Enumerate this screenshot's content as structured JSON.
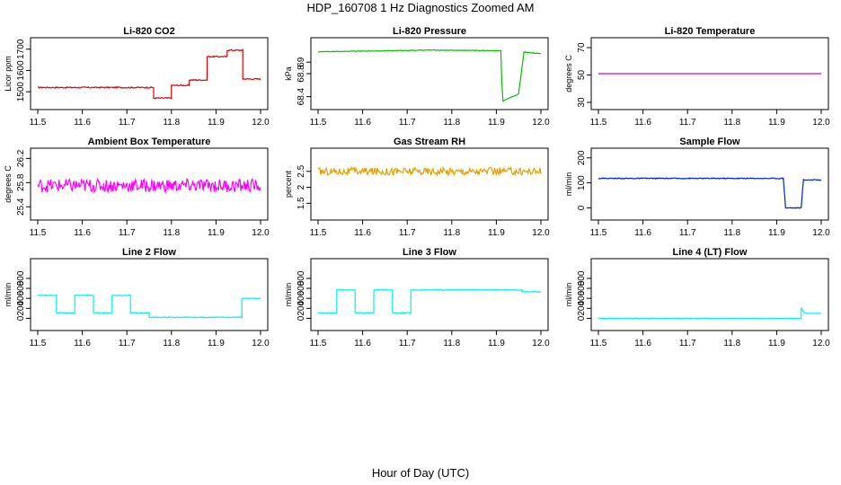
{
  "page_title": "HDP_160708  1 Hz Diagnostics Zoomed AM",
  "x_axis_label": "Hour of Day (UTC)",
  "chart_data": [
    {
      "type": "line",
      "title": "Li-820 CO2",
      "ylabel": "Licor ppm",
      "color": "#e00000",
      "xlim": [
        11.5,
        12.0
      ],
      "ylim": [
        1450,
        1720
      ],
      "xticks": [
        11.5,
        11.6,
        11.7,
        11.8,
        11.9,
        12.0
      ],
      "yticks": [
        1500,
        1600,
        1700
      ],
      "noise": 3,
      "series": [
        {
          "x": [
            11.5,
            11.76,
            11.76,
            11.8,
            11.8,
            11.84,
            11.84,
            11.88,
            11.88,
            11.925,
            11.925,
            11.96,
            11.96,
            12.0
          ],
          "y": [
            1520,
            1520,
            1470,
            1470,
            1530,
            1530,
            1555,
            1555,
            1665,
            1665,
            1695,
            1695,
            1560,
            1560
          ]
        }
      ]
    },
    {
      "type": "line",
      "title": "Li-820 Pressure",
      "ylabel": "kPa",
      "color": "#00c000",
      "xlim": [
        11.5,
        12.0
      ],
      "ylim": [
        68.3,
        69.3
      ],
      "xticks": [
        11.5,
        11.6,
        11.7,
        11.8,
        11.9,
        12.0
      ],
      "yticks": [
        68.4,
        68.8,
        69.0
      ],
      "noise": 0.006,
      "series": [
        {
          "x": [
            11.5,
            11.75,
            11.91,
            11.912,
            11.915,
            11.95,
            11.962,
            11.97,
            12.0
          ],
          "y": [
            69.18,
            69.21,
            69.2,
            68.68,
            68.32,
            68.45,
            69.18,
            69.17,
            69.15
          ]
        }
      ]
    },
    {
      "type": "line",
      "title": "Li-820 Temperature",
      "ylabel": "degrees C",
      "color": "#d000d0",
      "xlim": [
        11.5,
        12.0
      ],
      "ylim": [
        30,
        72
      ],
      "xticks": [
        11.5,
        11.6,
        11.7,
        11.8,
        11.9,
        12.0
      ],
      "yticks": [
        30,
        50,
        70
      ],
      "noise": 0,
      "series": [
        {
          "x": [
            11.5,
            12.0
          ],
          "y": [
            51,
            51
          ]
        }
      ]
    },
    {
      "type": "line",
      "title": "Ambient Box Temperature",
      "ylabel": "degrees C",
      "color": "#ff00ff",
      "xlim": [
        11.5,
        12.0
      ],
      "ylim": [
        25.3,
        26.25
      ],
      "xticks": [
        11.5,
        11.6,
        11.7,
        11.8,
        11.9,
        12.0
      ],
      "yticks": [
        25.4,
        25.8,
        26.2
      ],
      "noise": 0.11,
      "series": [
        {
          "x": [
            11.5,
            12.0
          ],
          "y": [
            25.75,
            25.75
          ]
        }
      ]
    },
    {
      "type": "line",
      "title": "Gas Stream RH",
      "ylabel": "percent",
      "color": "#e0a000",
      "xlim": [
        11.5,
        12.0
      ],
      "ylim": [
        1.2,
        3.0
      ],
      "xticks": [
        11.5,
        11.6,
        11.7,
        11.8,
        11.9,
        12.0
      ],
      "yticks": [
        1.5,
        2.0,
        2.5
      ],
      "noise": 0.12,
      "series": [
        {
          "x": [
            11.5,
            12.0
          ],
          "y": [
            2.5,
            2.5
          ]
        }
      ]
    },
    {
      "type": "line",
      "title": "Sample Flow",
      "ylabel": "ml/min",
      "color": "#0020d0",
      "xlim": [
        11.5,
        12.0
      ],
      "ylim": [
        -20,
        210
      ],
      "xticks": [
        11.5,
        11.6,
        11.7,
        11.8,
        11.9,
        12.0
      ],
      "yticks": [
        0,
        100,
        200
      ],
      "noise": 2,
      "series": [
        {
          "x": [
            11.5,
            11.915,
            11.92,
            11.955,
            11.96,
            12.0
          ],
          "y": [
            118,
            118,
            0,
            0,
            112,
            112
          ]
        }
      ]
    },
    {
      "type": "line",
      "title": "Line 2 Flow",
      "ylabel": "ml/min",
      "color": "#00f0f0",
      "xlim": [
        11.5,
        12.0
      ],
      "ylim": [
        -100,
        1050
      ],
      "xticks": [
        11.5,
        11.6,
        11.7,
        11.8,
        11.9,
        12.0
      ],
      "yticks": [
        0,
        200,
        400,
        600,
        800
      ],
      "noise": 8,
      "series": [
        {
          "x": [
            11.5,
            11.542,
            11.542,
            11.583,
            11.583,
            11.625,
            11.625,
            11.667,
            11.667,
            11.708,
            11.708,
            11.75,
            11.75,
            11.958,
            11.958,
            12.0
          ],
          "y": [
            460,
            460,
            110,
            110,
            460,
            460,
            110,
            110,
            460,
            460,
            110,
            110,
            20,
            20,
            400,
            400
          ]
        }
      ]
    },
    {
      "type": "line",
      "title": "Line 3 Flow",
      "ylabel": "ml/min",
      "color": "#00f0f0",
      "xlim": [
        11.5,
        12.0
      ],
      "ylim": [
        -100,
        1050
      ],
      "xticks": [
        11.5,
        11.6,
        11.7,
        11.8,
        11.9,
        12.0
      ],
      "yticks": [
        0,
        200,
        400,
        600,
        800
      ],
      "noise": 8,
      "series": [
        {
          "x": [
            11.5,
            11.542,
            11.542,
            11.583,
            11.583,
            11.625,
            11.625,
            11.667,
            11.667,
            11.708,
            11.708,
            11.958,
            11.958,
            12.0
          ],
          "y": [
            110,
            110,
            570,
            570,
            110,
            110,
            570,
            570,
            110,
            110,
            570,
            570,
            530,
            530
          ]
        }
      ]
    },
    {
      "type": "line",
      "title": "Line 4 (LT) Flow",
      "ylabel": "ml/min",
      "color": "#00f0f0",
      "xlim": [
        11.5,
        12.0
      ],
      "ylim": [
        -100,
        1050
      ],
      "xticks": [
        11.5,
        11.6,
        11.7,
        11.8,
        11.9,
        12.0
      ],
      "yticks": [
        0,
        200,
        400,
        600,
        800
      ],
      "noise": 3,
      "series": [
        {
          "x": [
            11.5,
            11.955,
            11.955,
            11.96,
            11.965,
            12.0
          ],
          "y": [
            0,
            0,
            210,
            130,
            100,
            100
          ]
        }
      ]
    }
  ]
}
